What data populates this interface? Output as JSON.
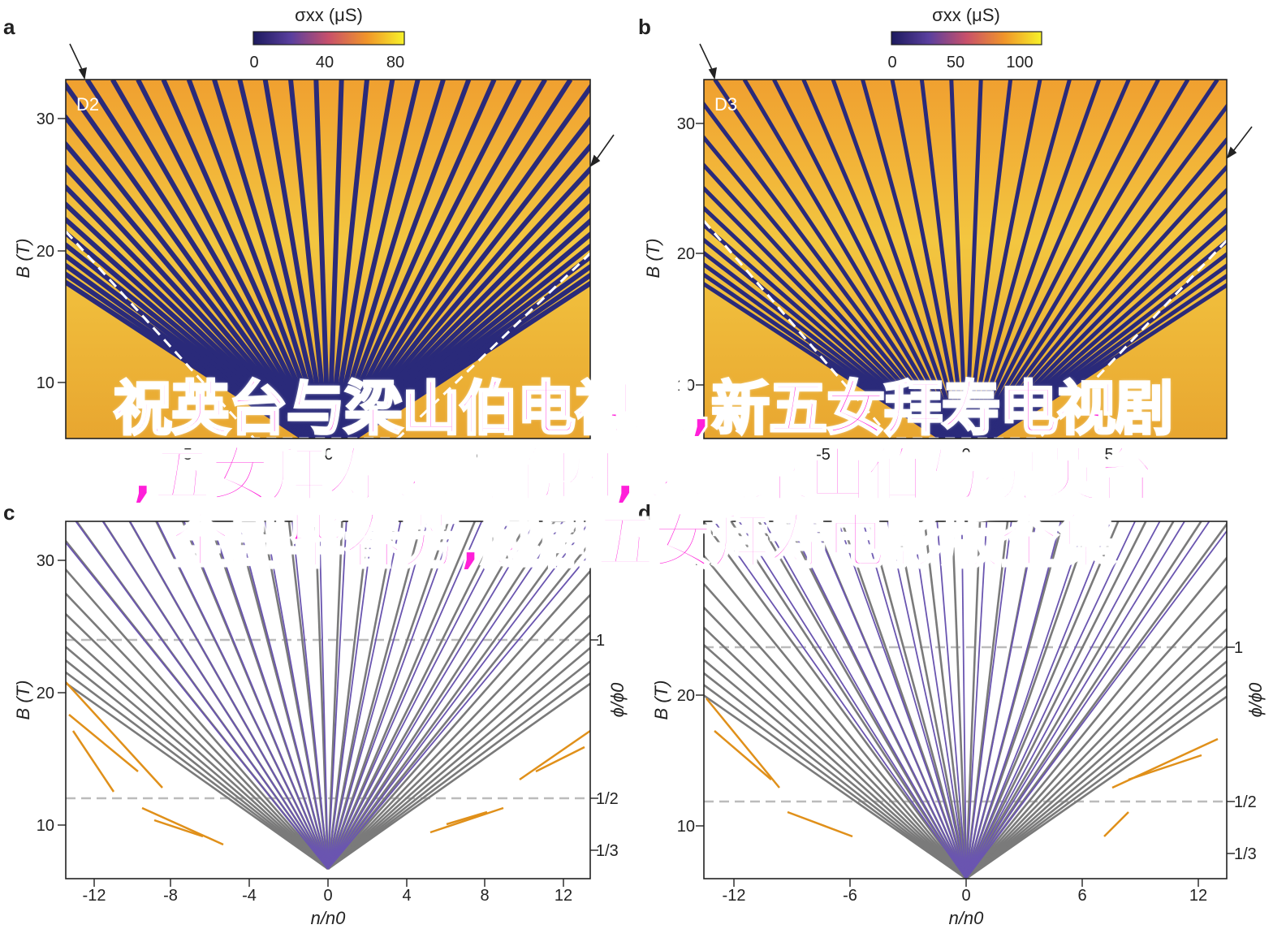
{
  "panels": [
    {
      "letter": "a",
      "inset": "D2",
      "colorbar_label": "σxx (μS)",
      "colorbar_ticks": [
        "0",
        "40",
        "80"
      ]
    },
    {
      "letter": "b",
      "inset": "D3",
      "colorbar_label": "σxx (μS)",
      "colorbar_ticks": [
        "0",
        "50",
        "100"
      ]
    },
    {
      "letter": "c"
    },
    {
      "letter": "d"
    }
  ],
  "axes": {
    "ylabel": "B (T)",
    "xlabel": "n/n0",
    "right_label": "ϕ/ϕ0",
    "y_ticks_top": [
      "10",
      "20",
      "30"
    ],
    "x_ticks_top": [
      "-5",
      "0",
      "5"
    ],
    "y_ticks_bottom": [
      "10",
      "20",
      "30"
    ],
    "x_ticks_bottom": [
      "-12",
      "-8",
      "-4",
      "0",
      "4",
      "8",
      "12"
    ],
    "right_ticks": [
      "1",
      "1/2",
      "1/3"
    ]
  },
  "overlay": {
    "line1": "祝英台与梁山伯电视剧,新五女拜寿电视剧",
    "line2": ",五女拜寿越剧第四,越剧梁山伯与祝英台",
    "line3": "全剧毕春芳,越剧五女拜寿电影版全集"
  },
  "colors": {
    "heat_low": "#2a2a7a",
    "heat_mid": "#e67a2a",
    "heat_high": "#f7f020",
    "fan_gray": "#7a7a7a",
    "fan_purple": "#6a55b0",
    "fan_orange": "#e0901a",
    "overlay_text": "#ff1fd9"
  },
  "chart_data": [
    {
      "type": "heatmap",
      "panel": "a",
      "title": "",
      "xlabel": "n/n0",
      "ylabel": "B (T)",
      "colorbar": {
        "label": "σxx (μS)",
        "range": [
          0,
          85
        ],
        "ticks": [
          0,
          40,
          80
        ]
      },
      "xlim": [
        -13.5,
        13.5
      ],
      "ylim": [
        6.5,
        33
      ],
      "dashed_boundary": [
        [
          -13.2,
          22
        ],
        [
          -4,
          9.5
        ],
        [
          4,
          9.5
        ],
        [
          13.2,
          20
        ]
      ]
    },
    {
      "type": "heatmap",
      "panel": "b",
      "title": "",
      "xlabel": "n/n0",
      "ylabel": "B (T)",
      "colorbar": {
        "label": "σxx (μS)",
        "range": [
          0,
          110
        ],
        "ticks": [
          0,
          50,
          100
        ]
      },
      "xlim": [
        -13.5,
        13.5
      ],
      "ylim": [
        6.5,
        33
      ],
      "dashed_boundary": [
        [
          -13.2,
          22.5
        ],
        [
          -4,
          9.5
        ],
        [
          4,
          9.5
        ],
        [
          13.2,
          21
        ]
      ]
    },
    {
      "type": "line",
      "panel": "c",
      "xlabel": "n/n0",
      "ylabel": "B (T)",
      "right_axis": {
        "label": "ϕ/ϕ0",
        "ticks": [
          "1",
          "1/2",
          "1/3"
        ],
        "tick_B": [
          24,
          12,
          8
        ]
      },
      "xlim": [
        -13.3,
        13.3
      ],
      "ylim": [
        6,
        34
      ],
      "fan_origin": [
        0,
        7
      ],
      "fan_slopes_lines": 30,
      "flux_lines_B": [
        24,
        12
      ]
    },
    {
      "type": "line",
      "panel": "d",
      "xlabel": "n/n0",
      "ylabel": "B (T)",
      "right_axis": {
        "label": "ϕ/ϕ0",
        "ticks": [
          "1",
          "1/2",
          "1/3"
        ],
        "tick_B": [
          24,
          12,
          8
        ]
      },
      "xlim": [
        -13.3,
        13.3
      ],
      "ylim": [
        6,
        34
      ],
      "fan_origin": [
        0,
        6.5
      ],
      "fan_slopes_lines": 30,
      "flux_lines_B": [
        24,
        12
      ]
    }
  ]
}
